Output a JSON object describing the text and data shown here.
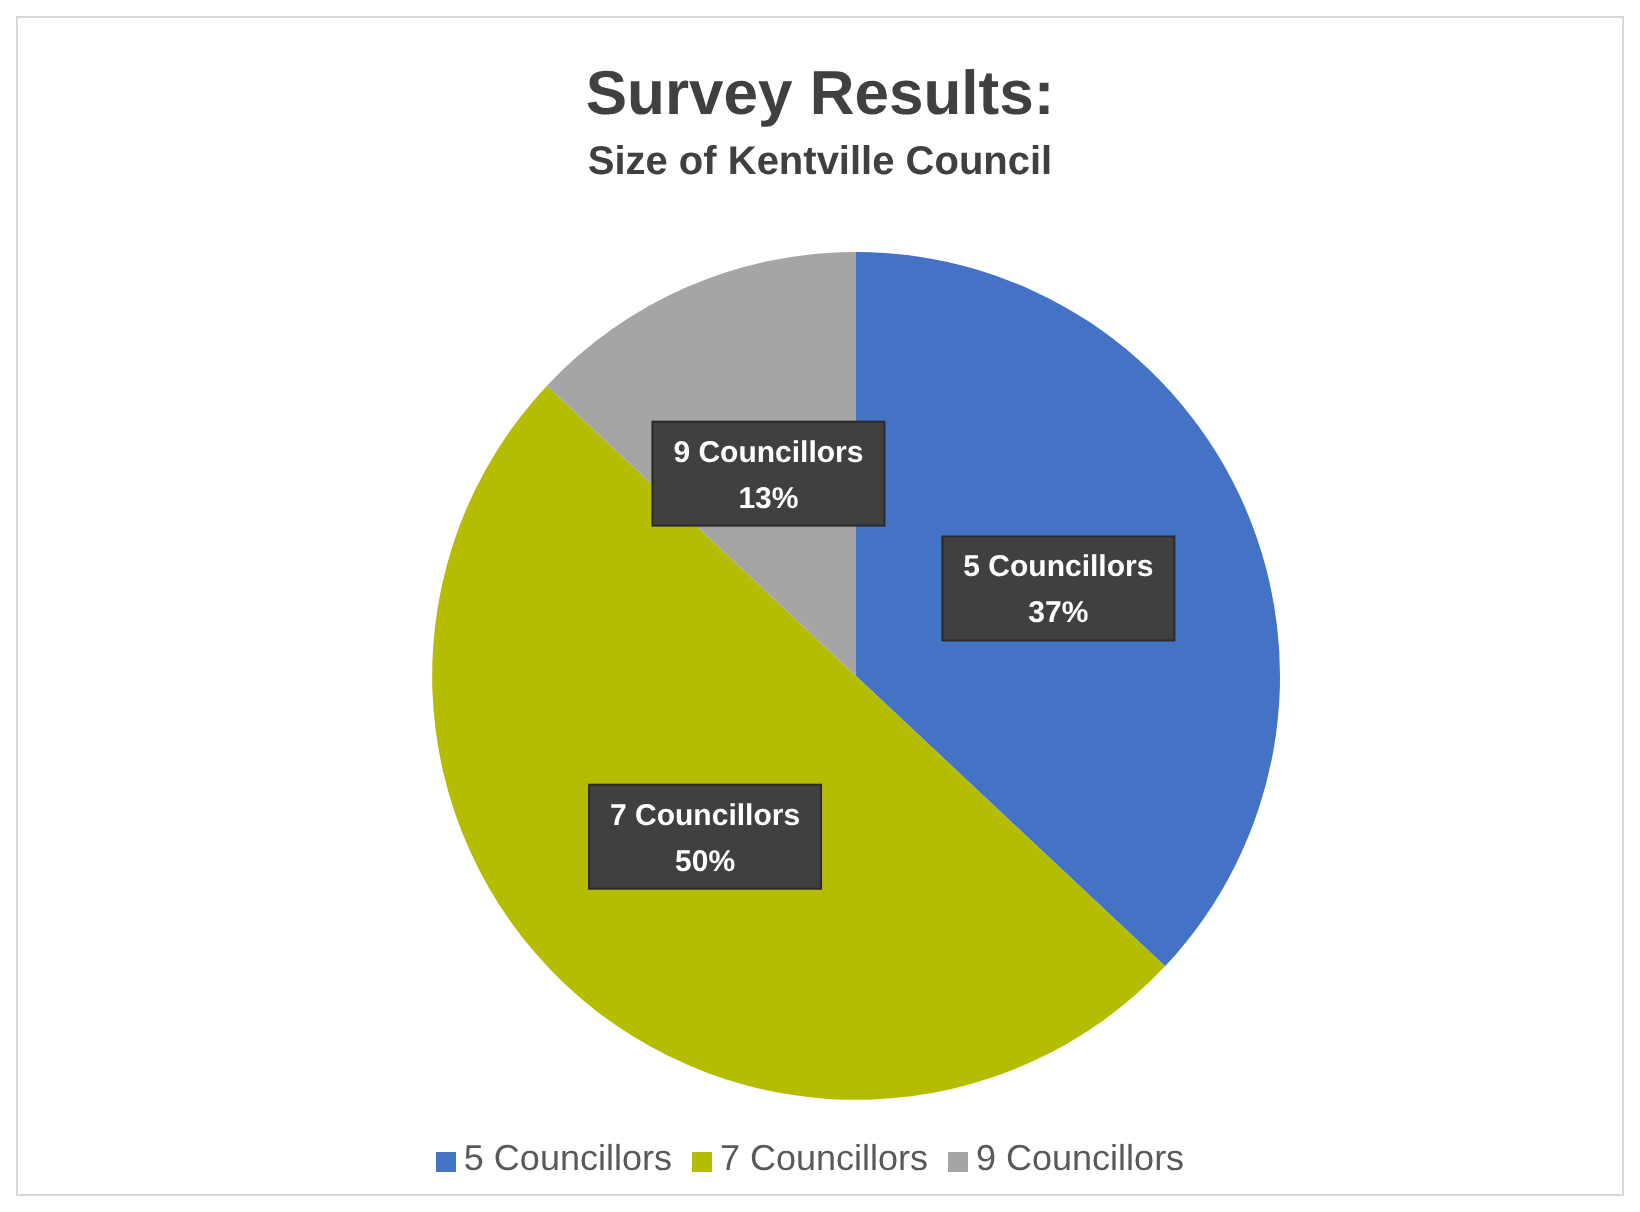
{
  "chart_data": {
    "type": "pie",
    "title": "Survey Results:",
    "subtitle": "Size of Kentville Council",
    "categories": [
      "5 Councillors",
      "7 Councillors",
      "9 Councillors"
    ],
    "values": [
      37,
      50,
      13
    ],
    "value_labels": [
      "37%",
      "50%",
      "13%"
    ],
    "colors": [
      "#4472c4",
      "#b5bd00",
      "#a5a5a5"
    ],
    "legend": "bottom"
  }
}
